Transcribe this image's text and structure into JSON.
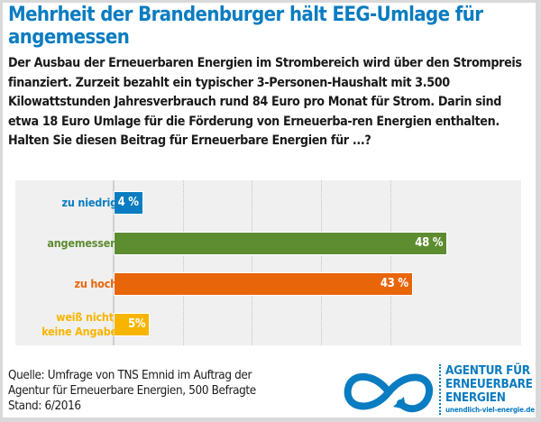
{
  "title": "Mehrheit der Brandenburger hält EEG-Umlage für angemessen",
  "question": "Der Ausbau der Erneuerbaren Energien im Strombereich wird über den Strompreis finanziert. Zurzeit bezahlt ein typischer 3-Personen-Haushalt mit 3.500 Kilowattstunden Jahresverbrauch rund 84 Euro pro Monat für Strom. Darin sind etwa 18 Euro Umlage für die Förderung von Erneuerba-ren Energien enthalten. Halten Sie diesen Beitrag für Erneuerbare Energien für ...?",
  "chart_data": {
    "type": "bar",
    "orientation": "horizontal",
    "title": "Mehrheit der Brandenburger hält EEG-Umlage für angemessen",
    "categories": [
      "zu niedrig",
      "angemessen",
      "zu hoch",
      "weiß nicht, keine Angabe"
    ],
    "values": [
      4,
      48,
      43,
      5
    ],
    "value_labels": [
      "4 %",
      "48 %",
      "43 %",
      "5%"
    ],
    "colors": [
      "#0a7cc1",
      "#5e8c31",
      "#e8650a",
      "#f7b500"
    ],
    "unit": "%",
    "xlim": [
      0,
      60
    ],
    "grid": true,
    "grid_ticks": [
      10,
      20,
      30,
      40
    ],
    "xlabel": "",
    "ylabel": ""
  },
  "source": {
    "line1": "Quelle: Umfrage von TNS Emnid im Auftrag der",
    "line2": "Agentur für Erneuerbare Energien, 500 Befragte",
    "line3": "Stand: 6/2016"
  },
  "logo": {
    "line1": "AGENTUR FÜR",
    "line2": "ERNEUERBARE",
    "line3": "ENERGIEN",
    "url": "unendlich-viel-energie.de",
    "icon": "infinity-icon",
    "color": "#0a7cc1"
  }
}
